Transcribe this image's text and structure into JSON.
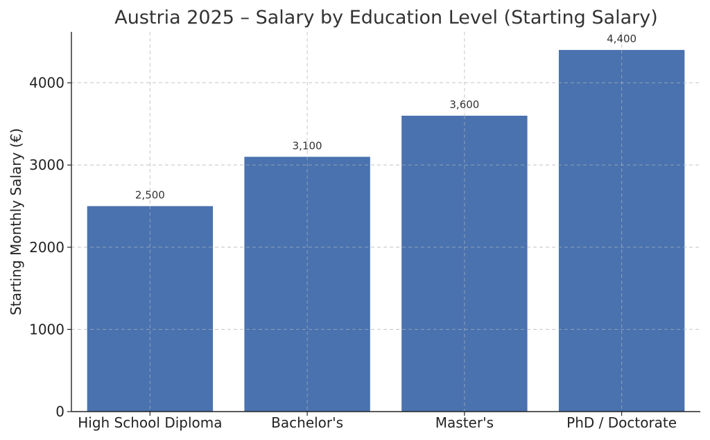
{
  "chart_data": {
    "type": "bar",
    "title": "Austria 2025 – Salary by Education Level (Starting Salary)",
    "xlabel": "",
    "ylabel": "Starting Monthly Salary (€)",
    "categories": [
      "High School Diploma",
      "Bachelor's",
      "Master's",
      "PhD / Doctorate"
    ],
    "values": [
      2500,
      3100,
      3600,
      4400
    ],
    "data_labels": [
      "2,500",
      "3,100",
      "3,600",
      "4,400"
    ],
    "yticks": [
      0,
      1000,
      2000,
      3000,
      4000
    ],
    "ylim": [
      0,
      4620
    ],
    "grid": true,
    "bar_color": "#4a72ae"
  }
}
